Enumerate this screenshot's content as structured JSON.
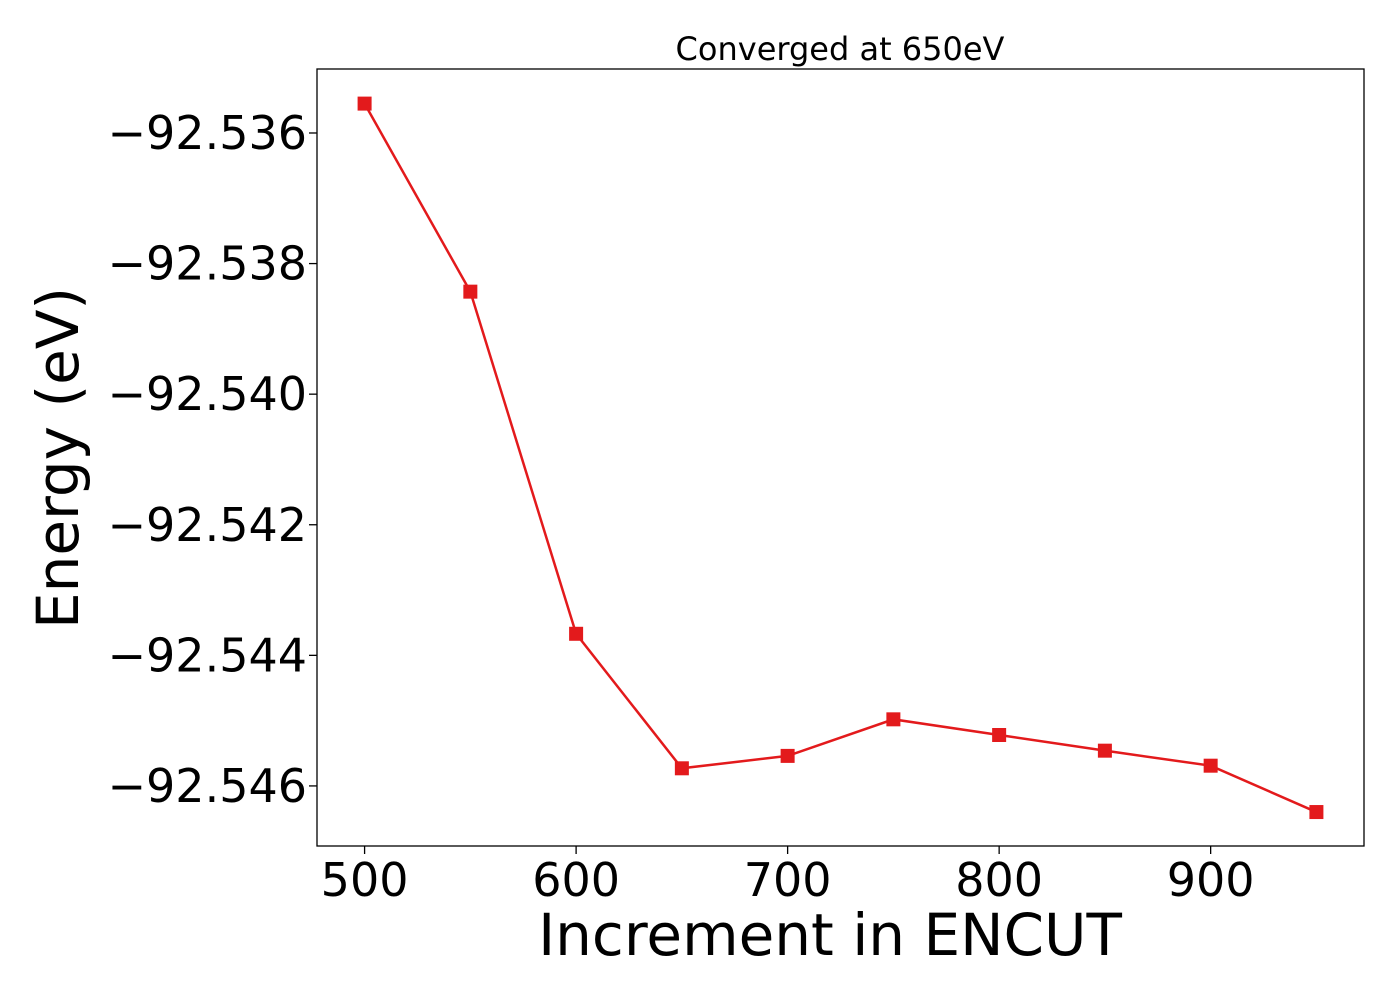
{
  "chart_data": {
    "type": "line",
    "title": "Converged at 650eV",
    "xlabel": "Increment in ENCUT",
    "ylabel": "Energy (eV)",
    "x": [
      500,
      550,
      600,
      650,
      700,
      750,
      800,
      850,
      900,
      950
    ],
    "series": [
      {
        "values": [
          -92.53555,
          -92.53843,
          -92.54367,
          -92.54573,
          -92.54554,
          -92.54498,
          -92.54522,
          -92.54546,
          -92.54569,
          -92.5464
        ],
        "color": "#e31a1c",
        "marker": "square"
      }
    ],
    "xticks": [
      500,
      600,
      700,
      800,
      900
    ],
    "xtick_labels": [
      "500",
      "600",
      "700",
      "800",
      "900"
    ],
    "yticks": [
      -92.536,
      -92.538,
      -92.54,
      -92.542,
      -92.544,
      -92.546
    ],
    "ytick_labels": [
      "−92.536",
      "−92.538",
      "−92.540",
      "−92.542",
      "−92.544",
      "−92.546"
    ],
    "xlim": [
      477.5,
      972.5
    ],
    "ylim": [
      -92.54692,
      -92.53502
    ],
    "grid": false,
    "legend": "none"
  }
}
